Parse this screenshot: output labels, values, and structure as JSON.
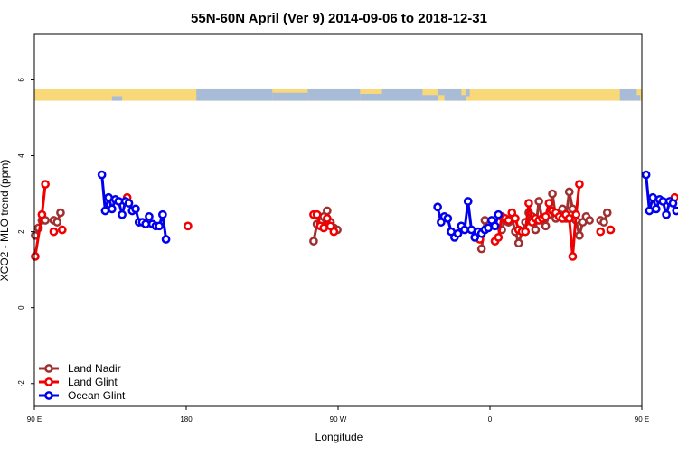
{
  "chart_data": {
    "type": "line",
    "title": "55N-60N April (Ver 9)   2014-09-06 to 2018-12-31",
    "xlabel": "Longitude",
    "ylabel": "XCO2 - MLO trend (ppm)",
    "xlim": [
      90,
      450
    ],
    "ylim": [
      -2.6,
      7.2
    ],
    "x_ticks": [
      {
        "value": 90,
        "label": "90 E"
      },
      {
        "value": 180,
        "label": "180"
      },
      {
        "value": 270,
        "label": "90 W"
      },
      {
        "value": 360,
        "label": "0"
      },
      {
        "value": 450,
        "label": "90 E"
      },
      {
        "value": 540,
        "label": "180"
      }
    ],
    "y_ticks": [
      {
        "value": -2,
        "label": "-2"
      },
      {
        "value": 0,
        "label": "0"
      },
      {
        "value": 2,
        "label": "2"
      },
      {
        "value": 4,
        "label": "4"
      },
      {
        "value": 6,
        "label": "6"
      }
    ],
    "legend_position": "bottom-left",
    "map_strip": {
      "y_range": [
        5.45,
        5.75
      ],
      "land_color": "#f8d878",
      "ocean_color": "#a8bcd8"
    },
    "series": [
      {
        "name": "Land Nadir",
        "color": "#a03030",
        "segments": [
          [
            [
              90.5,
              1.9
            ],
            [
              92.5,
              2.1
            ],
            [
              94.5,
              2.3
            ],
            [
              96.5,
              2.3
            ]
          ],
          [
            [
              101.5,
              2.3
            ],
            [
              103.5,
              2.25
            ],
            [
              105.5,
              2.5
            ]
          ],
          [
            [
              255.5,
              1.75
            ],
            [
              257.5,
              2.2
            ],
            [
              259.5,
              2.25
            ],
            [
              261.5,
              2.4
            ],
            [
              263.5,
              2.55
            ],
            [
              265.5,
              2.25
            ],
            [
              267.5,
              2.1
            ],
            [
              269.5,
              2.05
            ]
          ],
          [
            [
              355,
              1.55
            ],
            [
              357,
              2.3
            ]
          ],
          [
            [
              365,
              2.25
            ],
            [
              367,
              2.05
            ],
            [
              369,
              2.3
            ],
            [
              371,
              2.25
            ],
            [
              373,
              2.35
            ],
            [
              375,
              2.0
            ],
            [
              377,
              1.7
            ],
            [
              379,
              2.0
            ],
            [
              381,
              2.25
            ],
            [
              383,
              2.5
            ],
            [
              385,
              2.4
            ],
            [
              387,
              2.05
            ],
            [
              389,
              2.8
            ],
            [
              391,
              2.3
            ],
            [
              393,
              2.15
            ],
            [
              395,
              2.45
            ],
            [
              397,
              3.0
            ],
            [
              399,
              2.35
            ],
            [
              401,
              2.45
            ],
            [
              403,
              2.6
            ],
            [
              405,
              2.35
            ],
            [
              407,
              3.05
            ],
            [
              409,
              2.6
            ],
            [
              411,
              2.3
            ],
            [
              413,
              1.9
            ],
            [
              415,
              2.25
            ],
            [
              417,
              2.4
            ],
            [
              419,
              2.3
            ]
          ],
          [
            [
              425.5,
              2.3
            ],
            [
              427.5,
              2.25
            ],
            [
              429.5,
              2.5
            ]
          ]
        ]
      },
      {
        "name": "Land Glint",
        "color": "#f00000",
        "segments": [
          [
            [
              90.5,
              1.35
            ],
            [
              94.5,
              2.45
            ],
            [
              96.5,
              3.25
            ]
          ],
          [
            [
              101.5,
              2.0
            ]
          ],
          [
            [
              106.5,
              2.05
            ]
          ],
          [
            [
              145,
              2.9
            ]
          ],
          [
            [
              181,
              2.15
            ]
          ],
          [
            [
              255.5,
              2.45
            ],
            [
              257.5,
              2.45
            ],
            [
              259.5,
              2.15
            ],
            [
              261.5,
              2.1
            ],
            [
              263.5,
              2.35
            ],
            [
              265.5,
              2.15
            ],
            [
              267.5,
              2.0
            ]
          ],
          [
            [
              354,
              1.8
            ]
          ],
          [
            [
              363,
              1.75
            ],
            [
              365,
              1.85
            ],
            [
              367,
              2.4
            ],
            [
              369,
              2.35
            ],
            [
              371,
              2.3
            ],
            [
              373,
              2.5
            ],
            [
              375,
              2.35
            ],
            [
              377,
              2.05
            ],
            [
              379,
              2.0
            ],
            [
              381,
              2.0
            ],
            [
              383,
              2.75
            ],
            [
              385,
              2.25
            ],
            [
              387,
              2.35
            ],
            [
              389,
              2.3
            ],
            [
              391,
              2.35
            ],
            [
              393,
              2.4
            ],
            [
              395,
              2.75
            ],
            [
              397,
              2.55
            ],
            [
              399,
              2.5
            ],
            [
              401,
              2.4
            ],
            [
              403,
              2.35
            ],
            [
              405,
              2.45
            ],
            [
              407,
              2.35
            ],
            [
              409,
              1.35
            ],
            [
              411,
              2.45
            ],
            [
              413,
              3.25
            ]
          ],
          [
            [
              425.5,
              2.0
            ]
          ],
          [
            [
              431.5,
              2.05
            ]
          ],
          [
            [
              469.5,
              2.9
            ]
          ]
        ]
      },
      {
        "name": "Ocean Glint",
        "color": "#0000ee",
        "segments": [
          [
            [
              130,
              3.5
            ],
            [
              132,
              2.55
            ],
            [
              134,
              2.9
            ],
            [
              136,
              2.6
            ],
            [
              138,
              2.85
            ],
            [
              140,
              2.8
            ],
            [
              142,
              2.45
            ],
            [
              144,
              2.8
            ],
            [
              146,
              2.75
            ],
            [
              148,
              2.55
            ],
            [
              150,
              2.6
            ],
            [
              152,
              2.25
            ],
            [
              154,
              2.25
            ],
            [
              156,
              2.2
            ],
            [
              158,
              2.4
            ],
            [
              160,
              2.2
            ],
            [
              162,
              2.15
            ],
            [
              164,
              2.15
            ],
            [
              166,
              2.45
            ],
            [
              168,
              1.8
            ]
          ],
          [
            [
              329,
              2.65
            ],
            [
              331,
              2.25
            ],
            [
              333,
              2.4
            ],
            [
              335,
              2.35
            ],
            [
              337,
              2.0
            ],
            [
              339,
              1.85
            ],
            [
              341,
              1.95
            ],
            [
              343,
              2.15
            ],
            [
              345,
              2.05
            ],
            [
              347,
              2.8
            ],
            [
              349,
              2.05
            ],
            [
              351,
              1.85
            ],
            [
              353,
              2.0
            ],
            [
              355,
              1.95
            ],
            [
              357,
              2.05
            ],
            [
              359,
              2.1
            ],
            [
              361,
              2.3
            ],
            [
              363,
              2.15
            ],
            [
              365,
              2.45
            ]
          ],
          [
            [
              452.5,
              3.5
            ],
            [
              454.5,
              2.55
            ],
            [
              456.5,
              2.9
            ],
            [
              458.5,
              2.6
            ],
            [
              460.5,
              2.85
            ],
            [
              462.5,
              2.8
            ],
            [
              464.5,
              2.45
            ],
            [
              466.5,
              2.8
            ],
            [
              468.5,
              2.75
            ],
            [
              470.5,
              2.55
            ]
          ]
        ]
      }
    ]
  }
}
